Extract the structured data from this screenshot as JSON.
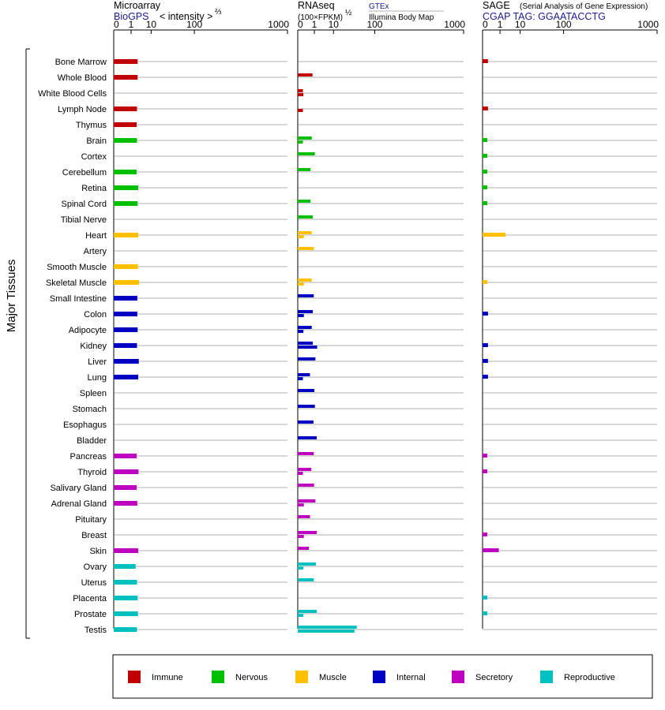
{
  "chart_data": {
    "type": "bar",
    "ylabel": "Major Tissues",
    "panels": [
      {
        "id": "microarray",
        "title": "Microarray",
        "source": "BioGPS",
        "unit_label": "< intensity >",
        "unit_power": "⅔",
        "ticks": [
          "0",
          "1",
          "10",
          "100",
          "1000"
        ]
      },
      {
        "id": "rnaseq",
        "title": "RNAseq",
        "unit_label": "(100×FPKM)",
        "unit_power": "½",
        "source_top": "GTEx",
        "source_bottom": "Illumina Body Map",
        "ticks": [
          "0",
          "1",
          "10",
          "100",
          "1000"
        ]
      },
      {
        "id": "sage",
        "title": "SAGE",
        "subtitle": "(Serial Analysis of Gene Expression)",
        "source": "CGAP TAG: GGAATACCTG",
        "ticks": [
          "0",
          "1",
          "10",
          "100",
          "1000"
        ]
      }
    ],
    "categories": [
      "Bone Marrow",
      "Whole Blood",
      "White Blood Cells",
      "Lymph Node",
      "Thymus",
      "Brain",
      "Cortex",
      "Cerebellum",
      "Retina",
      "Spinal Cord",
      "Tibial Nerve",
      "Heart",
      "Artery",
      "Smooth Muscle",
      "Skeletal Muscle",
      "Small Intestine",
      "Colon",
      "Adipocyte",
      "Kidney",
      "Liver",
      "Lung",
      "Spleen",
      "Stomach",
      "Esophagus",
      "Bladder",
      "Pancreas",
      "Thyroid",
      "Salivary Gland",
      "Adrenal Gland",
      "Pituitary",
      "Breast",
      "Skin",
      "Ovary",
      "Uterus",
      "Placenta",
      "Prostate",
      "Testis"
    ],
    "groups": [
      "Immune",
      "Immune",
      "Immune",
      "Immune",
      "Immune",
      "Nervous",
      "Nervous",
      "Nervous",
      "Nervous",
      "Nervous",
      "Nervous",
      "Muscle",
      "Muscle",
      "Muscle",
      "Muscle",
      "Internal",
      "Internal",
      "Internal",
      "Internal",
      "Internal",
      "Internal",
      "Internal",
      "Internal",
      "Internal",
      "Internal",
      "Secretory",
      "Secretory",
      "Secretory",
      "Secretory",
      "Secretory",
      "Secretory",
      "Secretory",
      "Reproductive",
      "Reproductive",
      "Reproductive",
      "Reproductive",
      "Reproductive"
    ],
    "series": [
      {
        "name": "Microarray",
        "values": [
          2.6,
          2.6,
          null,
          2.4,
          2.3,
          2.4,
          null,
          2.3,
          2.8,
          2.6,
          null,
          2.8,
          null,
          2.7,
          3.1,
          2.5,
          2.5,
          2.6,
          2.4,
          3.0,
          2.8,
          null,
          null,
          null,
          null,
          2.3,
          2.9,
          2.3,
          2.5,
          null,
          null,
          2.8,
          2.0,
          2.4,
          2.6,
          2.7,
          2.4
        ]
      },
      {
        "name": "GTEx",
        "values": [
          null,
          0.7,
          0.03,
          null,
          null,
          0.6,
          1.1,
          0.45,
          null,
          0.45,
          0.75,
          0.6,
          0.9,
          null,
          0.6,
          0.9,
          0.75,
          0.6,
          0.75,
          1.2,
          0.4,
          1.0,
          1.1,
          0.85,
          1.5,
          0.9,
          0.55,
          0.95,
          1.2,
          0.4,
          1.5,
          0.3,
          1.3,
          0.9,
          null,
          1.5,
          45.0
        ]
      },
      {
        "name": "Illumina Body Map",
        "values": [
          null,
          null,
          0.04,
          0.03,
          null,
          0.03,
          null,
          null,
          null,
          null,
          null,
          0.05,
          null,
          null,
          0.05,
          null,
          0.05,
          0.04,
          1.6,
          null,
          0.03,
          null,
          null,
          null,
          null,
          null,
          0.03,
          null,
          0.05,
          null,
          0.05,
          null,
          0.04,
          null,
          null,
          0.04,
          40.0
        ]
      },
      {
        "name": "SAGE",
        "values": [
          0.03,
          null,
          null,
          0.03,
          null,
          0.02,
          0.02,
          0.02,
          0.02,
          0.02,
          null,
          2.3,
          null,
          null,
          0.02,
          null,
          0.03,
          null,
          0.03,
          0.03,
          0.03,
          null,
          null,
          null,
          null,
          0.02,
          0.02,
          null,
          null,
          null,
          0.02,
          0.8,
          null,
          null,
          0.02,
          0.02,
          null
        ]
      }
    ],
    "xlim": [
      0,
      1000
    ],
    "scale": "custom power scale (ticks 0, 1, 10, 100, 1000)",
    "grid": true
  },
  "legend": [
    {
      "label": "Immune",
      "color": "#c00000"
    },
    {
      "label": "Nervous",
      "color": "#00c000"
    },
    {
      "label": "Muscle",
      "color": "#ffc000"
    },
    {
      "label": "Internal",
      "color": "#0000c0"
    },
    {
      "label": "Secretory",
      "color": "#c000c0"
    },
    {
      "label": "Reproductive",
      "color": "#00c0c0"
    }
  ]
}
